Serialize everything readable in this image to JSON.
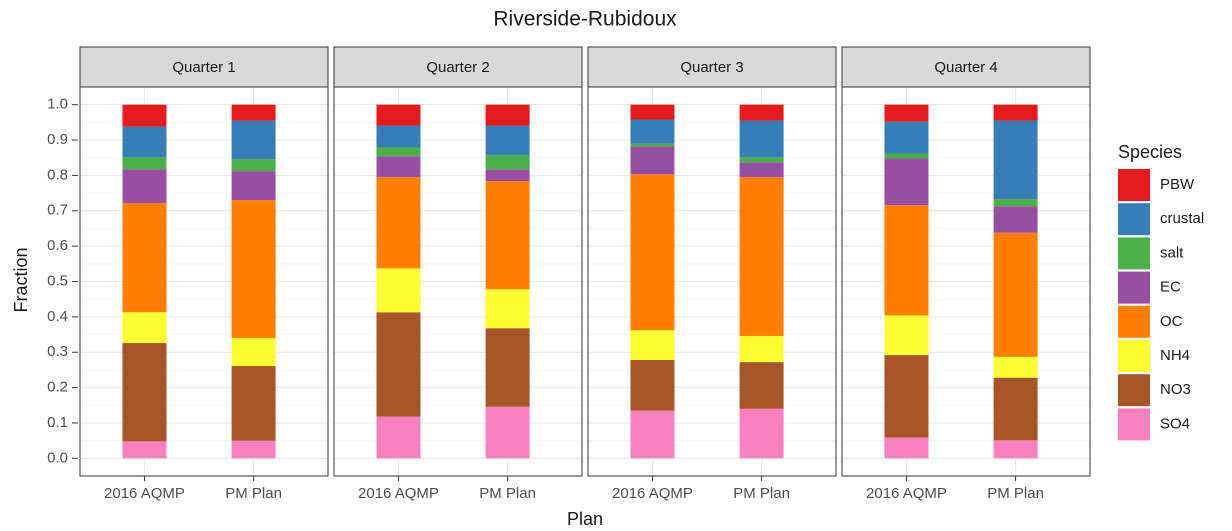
{
  "chart_data": {
    "type": "bar",
    "stacked": true,
    "title": "Riverside-Rubidoux",
    "xlabel": "Plan",
    "ylabel": "Fraction",
    "legend_title": "Species",
    "facets": [
      "Quarter 1",
      "Quarter 2",
      "Quarter 3",
      "Quarter 4"
    ],
    "categories": [
      "2016 AQMP",
      "PM Plan"
    ],
    "ylim": [
      -0.05,
      1.05
    ],
    "yticks": [
      {
        "value": 0,
        "label": "0.0"
      },
      0.1,
      0.2,
      0.3,
      0.4,
      0.5,
      0.6,
      0.7,
      0.8,
      0.9,
      {
        "value": 1,
        "label": "1.0"
      }
    ],
    "grid": true,
    "legend": "right",
    "series": [
      {
        "name": "PBW",
        "color": "#e41a1c",
        "values": [
          [
            0.062,
            0.045
          ],
          [
            0.059,
            0.059
          ],
          [
            0.042,
            0.045
          ],
          [
            0.048,
            0.045
          ]
        ]
      },
      {
        "name": "crustal",
        "color": "#377eb8",
        "values": [
          [
            0.087,
            0.109
          ],
          [
            0.062,
            0.084
          ],
          [
            0.068,
            0.104
          ],
          [
            0.09,
            0.222
          ]
        ]
      },
      {
        "name": "salt",
        "color": "#4daf4a",
        "values": [
          [
            0.034,
            0.034
          ],
          [
            0.025,
            0.04
          ],
          [
            0.008,
            0.014
          ],
          [
            0.014,
            0.02
          ]
        ]
      },
      {
        "name": "EC",
        "color": "#984ea3",
        "values": [
          [
            0.095,
            0.082
          ],
          [
            0.059,
            0.033
          ],
          [
            0.079,
            0.042
          ],
          [
            0.132,
            0.075
          ]
        ]
      },
      {
        "name": "OC",
        "color": "#ff7f00",
        "values": [
          [
            0.309,
            0.39
          ],
          [
            0.258,
            0.306
          ],
          [
            0.441,
            0.449
          ],
          [
            0.312,
            0.351
          ]
        ]
      },
      {
        "name": "NH4",
        "color": "#ffff33",
        "values": [
          [
            0.087,
            0.079
          ],
          [
            0.124,
            0.11
          ],
          [
            0.084,
            0.074
          ],
          [
            0.112,
            0.059
          ]
        ]
      },
      {
        "name": "NO3",
        "color": "#a65628",
        "values": [
          [
            0.278,
            0.211
          ],
          [
            0.295,
            0.222
          ],
          [
            0.143,
            0.132
          ],
          [
            0.233,
            0.177
          ]
        ]
      },
      {
        "name": "SO4",
        "color": "#f781bf",
        "values": [
          [
            0.048,
            0.05
          ],
          [
            0.118,
            0.146
          ],
          [
            0.135,
            0.14
          ],
          [
            0.059,
            0.051
          ]
        ]
      }
    ]
  }
}
